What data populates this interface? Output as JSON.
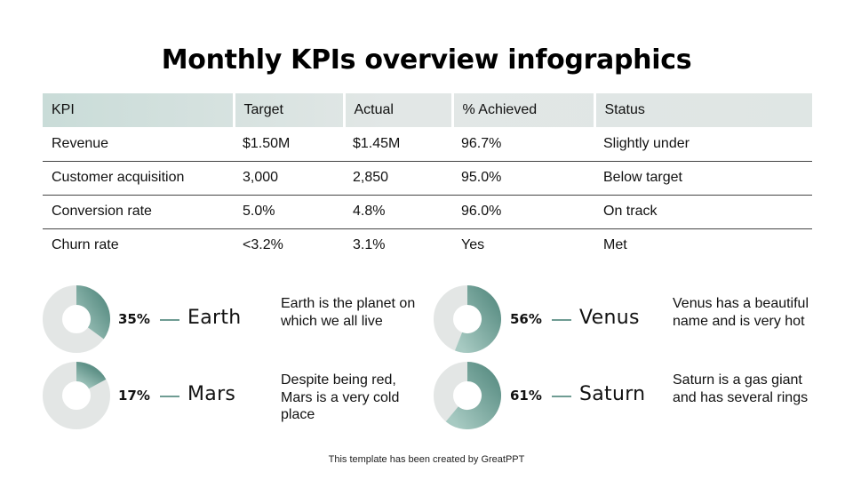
{
  "title": "Monthly KPIs overview infographics",
  "table": {
    "headers": [
      "KPI",
      "Target",
      "Actual",
      "% Achieved",
      "Status"
    ],
    "rows": [
      [
        "Revenue",
        "$1.50M",
        "$1.45M",
        "96.7%",
        "Slightly under"
      ],
      [
        "Customer acquisition",
        "3,000",
        "2,850",
        "95.0%",
        "Below target"
      ],
      [
        "Conversion rate",
        "5.0%",
        "4.8%",
        "96.0%",
        "On track"
      ],
      [
        "Churn rate",
        "<3.2%",
        "3.1%",
        "Yes",
        "Met"
      ]
    ]
  },
  "planets": [
    {
      "name": "Earth",
      "percent_label": "35%",
      "percent": 35,
      "description": "Earth is the planet on which we all live"
    },
    {
      "name": "Venus",
      "percent_label": "56%",
      "percent": 56,
      "description": "Venus has a beautiful name and is very hot"
    },
    {
      "name": "Mars",
      "percent_label": "17%",
      "percent": 17,
      "description": "Despite being red, Mars is a very cold place"
    },
    {
      "name": "Saturn",
      "percent_label": "61%",
      "percent": 61,
      "description": "Saturn is a gas giant and has several rings"
    }
  ],
  "colors": {
    "accent_dark": "#5e9187",
    "accent_light": "#a7cac2",
    "ring_track": "#e3e6e5",
    "header_bg": "#d7e3e0"
  },
  "footer": "This template has been created by GreatPPT"
}
